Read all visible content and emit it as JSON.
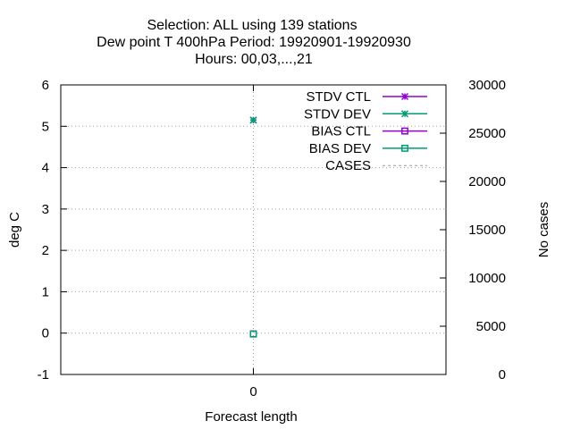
{
  "chart_data": {
    "type": "line",
    "title_lines": [
      "Selection: ALL using   139 stations",
      "Dew point T 400hPa   Period: 19920901-19920930",
      "Hours:  00,03,...,21"
    ],
    "xlabel": "Forecast length",
    "ylabel": "deg C",
    "y2label": "No cases",
    "x_ticks": [
      "0"
    ],
    "y_ticks": [
      "-1",
      "0",
      "1",
      "2",
      "3",
      "4",
      "5",
      "6"
    ],
    "y2_ticks": [
      "0",
      "5000",
      "10000",
      "15000",
      "20000",
      "25000",
      "30000"
    ],
    "xlim": [
      -1,
      1
    ],
    "ylim": [
      -1,
      6
    ],
    "y2lim": [
      0,
      30000
    ],
    "grid": true,
    "legend_position": "top-right",
    "series": [
      {
        "name": "STDV CTL",
        "color": "#9400d3",
        "marker": "asterisk",
        "axis": "y1",
        "x": [
          0
        ],
        "values": [
          5.15
        ]
      },
      {
        "name": "STDV DEV",
        "color": "#009e73",
        "marker": "asterisk",
        "axis": "y1",
        "x": [
          0
        ],
        "values": [
          5.15
        ]
      },
      {
        "name": "BIAS CTL",
        "color": "#9400d3",
        "marker": "square",
        "axis": "y1",
        "x": [
          0
        ],
        "values": [
          -0.02
        ]
      },
      {
        "name": "BIAS DEV",
        "color": "#009e73",
        "marker": "square",
        "axis": "y1",
        "x": [
          0
        ],
        "values": [
          -0.02
        ]
      },
      {
        "name": "CASES",
        "color": "#999999",
        "marker": "none",
        "dashed": true,
        "axis": "y2",
        "x": [],
        "values": []
      }
    ]
  }
}
